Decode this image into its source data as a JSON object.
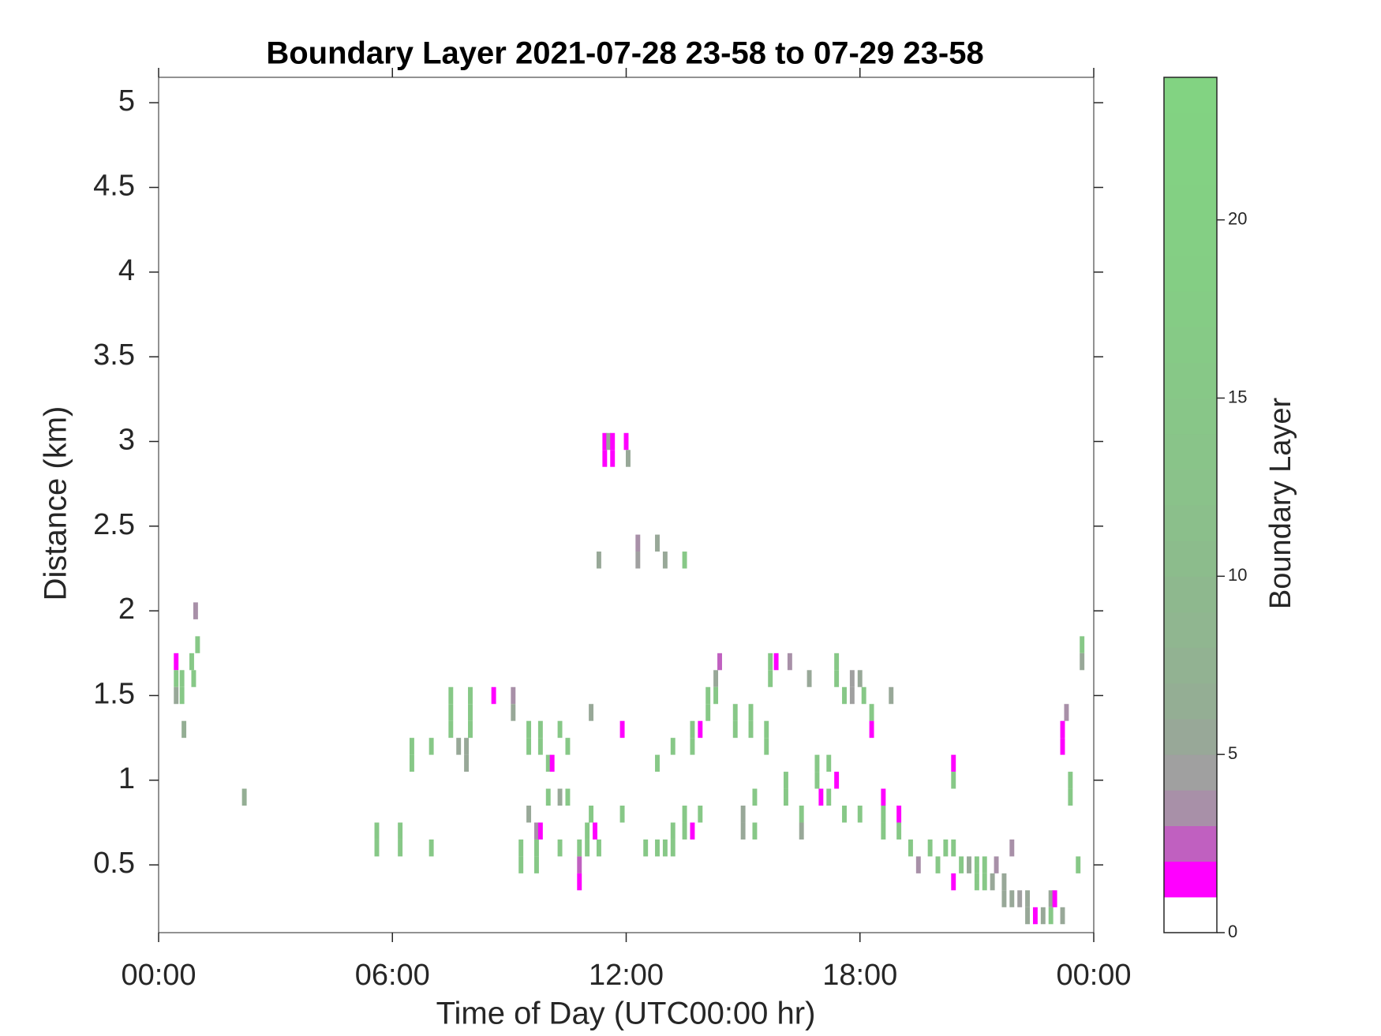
{
  "chart_data": {
    "type": "heatmap",
    "title": "Boundary Layer 2021-07-28 23-58 to 07-29 23-58",
    "x_label": "Time of Day (UTC00:00 hr)",
    "y_label": "Distance (km)",
    "colorbar_label": "Boundary Layer",
    "xlim": [
      0,
      24
    ],
    "xticks": [
      {
        "value": 0,
        "label": "00:00"
      },
      {
        "value": 6,
        "label": "06:00"
      },
      {
        "value": 12,
        "label": "12:00"
      },
      {
        "value": 18,
        "label": "18:00"
      },
      {
        "value": 24,
        "label": "00:00"
      }
    ],
    "ylim": [
      0.1,
      5.15
    ],
    "yticks": [
      0.5,
      1,
      1.5,
      2,
      2.5,
      3,
      3.5,
      4,
      4.5,
      5
    ],
    "clim": [
      0,
      24
    ],
    "cticks": [
      0,
      5,
      10,
      15,
      20
    ],
    "colormap": [
      "#ffffff",
      "#ff00ff",
      "#c060c0",
      "#a890a8",
      "#a0a0a0",
      "#98a898",
      "#94ae94",
      "#92b292",
      "#90b690",
      "#8eb88e",
      "#8cbc8c",
      "#8bbf8b",
      "#8ac28a",
      "#89c489",
      "#88c688",
      "#87c887",
      "#86ca86",
      "#85cc85",
      "#84ce84",
      "#84cf84",
      "#83d083",
      "#83d183",
      "#82d282",
      "#82d382"
    ],
    "x": [
      0.45,
      0.45,
      0.45,
      0.6,
      0.6,
      0.65,
      0.85,
      0.9,
      0.95,
      1.0,
      2.2,
      5.6,
      5.6,
      6.2,
      6.2,
      7.0,
      6.5,
      6.5,
      7.0,
      7.5,
      7.5,
      7.5,
      7.7,
      7.9,
      7.9,
      8.0,
      8.0,
      8.0,
      8.6,
      9.1,
      9.1,
      9.3,
      9.3,
      9.5,
      9.5,
      9.5,
      9.7,
      9.7,
      9.7,
      9.8,
      9.8,
      9.8,
      10.0,
      10.0,
      10.1,
      10.3,
      10.3,
      10.3,
      10.5,
      10.5,
      10.8,
      10.8,
      10.8,
      11.0,
      11.0,
      11.1,
      11.1,
      11.2,
      11.3,
      11.3,
      11.45,
      11.45,
      11.55,
      11.65,
      11.65,
      12.0,
      12.05,
      11.9,
      11.9,
      12.3,
      12.3,
      12.8,
      13.0,
      13.5,
      12.5,
      12.8,
      12.8,
      13.0,
      13.2,
      13.2,
      13.2,
      13.5,
      13.5,
      13.7,
      13.9,
      13.7,
      13.7,
      13.9,
      14.1,
      14.1,
      14.3,
      14.3,
      14.4,
      14.8,
      14.8,
      15.0,
      15.0,
      15.3,
      15.3,
      15.2,
      15.2,
      15.6,
      15.6,
      15.7,
      15.7,
      15.85,
      16.2,
      16.1,
      16.1,
      16.5,
      16.5,
      16.7,
      16.9,
      16.9,
      17.0,
      17.2,
      17.2,
      17.4,
      17.4,
      17.4,
      17.6,
      17.6,
      17.8,
      17.8,
      18.0,
      18.0,
      18.1,
      18.3,
      18.3,
      18.6,
      18.6,
      18.6,
      18.8,
      19.0,
      19.0,
      19.3,
      19.5,
      19.8,
      20.0,
      20.2,
      20.4,
      20.4,
      20.4,
      20.4,
      20.6,
      20.8,
      21.0,
      21.0,
      21.2,
      21.2,
      21.4,
      21.5,
      21.7,
      21.7,
      21.9,
      21.9,
      22.1,
      22.3,
      22.3,
      22.5,
      22.7,
      22.9,
      22.9,
      23.0,
      23.2,
      23.2,
      23.2,
      23.3,
      23.4,
      23.4,
      23.6,
      23.7,
      23.7
    ],
    "y": [
      1.7,
      1.6,
      1.5,
      1.6,
      1.5,
      1.3,
      1.7,
      1.6,
      2.0,
      1.8,
      0.9,
      0.7,
      0.6,
      0.7,
      0.6,
      0.6,
      1.2,
      1.1,
      1.2,
      1.5,
      1.4,
      1.3,
      1.2,
      1.2,
      1.1,
      1.5,
      1.4,
      1.3,
      1.5,
      1.5,
      1.4,
      0.6,
      0.5,
      1.3,
      1.2,
      0.8,
      0.7,
      0.6,
      0.5,
      1.3,
      1.2,
      0.7,
      1.1,
      0.9,
      1.1,
      1.3,
      0.9,
      0.6,
      1.2,
      0.9,
      0.5,
      0.6,
      0.4,
      0.7,
      0.6,
      1.4,
      0.8,
      0.7,
      0.6,
      2.3,
      3.0,
      2.9,
      3.0,
      3.0,
      2.9,
      3.0,
      2.9,
      1.3,
      0.8,
      2.4,
      2.3,
      2.4,
      2.3,
      2.3,
      0.6,
      0.6,
      1.1,
      0.6,
      0.7,
      0.6,
      1.2,
      0.8,
      0.7,
      0.7,
      0.8,
      1.3,
      1.2,
      1.3,
      1.5,
      1.4,
      1.6,
      1.5,
      1.7,
      1.4,
      1.3,
      0.8,
      0.7,
      0.9,
      0.7,
      1.4,
      1.3,
      1.3,
      1.2,
      1.7,
      1.6,
      1.7,
      1.7,
      1.0,
      0.9,
      0.8,
      0.7,
      1.6,
      1.1,
      1.0,
      0.9,
      1.1,
      0.9,
      1.7,
      1.6,
      1.0,
      1.5,
      0.8,
      1.6,
      1.5,
      1.6,
      0.8,
      1.5,
      1.4,
      1.3,
      0.9,
      0.8,
      0.7,
      1.5,
      0.8,
      0.7,
      0.6,
      0.5,
      0.6,
      0.5,
      0.6,
      1.1,
      1.0,
      0.6,
      0.4,
      0.5,
      0.5,
      0.5,
      0.4,
      0.5,
      0.4,
      0.4,
      0.5,
      0.4,
      0.3,
      0.6,
      0.3,
      0.3,
      0.3,
      0.2,
      0.2,
      0.2,
      0.3,
      0.2,
      0.3,
      1.3,
      1.2,
      0.2,
      1.4,
      1.0,
      0.9,
      0.5,
      1.8,
      1.7
    ],
    "values": [
      1,
      15,
      5,
      15,
      15,
      6,
      15,
      15,
      3,
      15,
      6,
      15,
      15,
      15,
      15,
      15,
      15,
      15,
      15,
      15,
      15,
      15,
      5,
      5,
      5,
      15,
      15,
      15,
      1,
      3,
      5,
      15,
      15,
      15,
      15,
      5,
      3,
      15,
      15,
      15,
      15,
      1,
      15,
      15,
      1,
      15,
      5,
      15,
      15,
      15,
      2,
      15,
      1,
      15,
      15,
      5,
      15,
      1,
      15,
      5,
      1,
      1,
      5,
      1,
      1,
      1,
      5,
      1,
      15,
      3,
      4,
      5,
      5,
      15,
      15,
      15,
      15,
      15,
      15,
      15,
      15,
      15,
      15,
      1,
      15,
      15,
      15,
      1,
      15,
      15,
      5,
      15,
      2,
      15,
      15,
      5,
      5,
      15,
      15,
      15,
      15,
      15,
      15,
      15,
      15,
      1,
      3,
      15,
      15,
      15,
      5,
      5,
      15,
      15,
      1,
      15,
      15,
      15,
      15,
      1,
      15,
      15,
      4,
      4,
      5,
      15,
      15,
      15,
      1,
      1,
      15,
      15,
      5,
      1,
      15,
      15,
      3,
      15,
      15,
      15,
      1,
      15,
      15,
      1,
      15,
      5,
      15,
      15,
      15,
      15,
      5,
      3,
      5,
      5,
      3,
      5,
      4,
      5,
      5,
      1,
      5,
      5,
      15,
      1,
      1,
      1,
      5,
      3,
      15,
      15,
      15,
      15,
      5
    ]
  }
}
